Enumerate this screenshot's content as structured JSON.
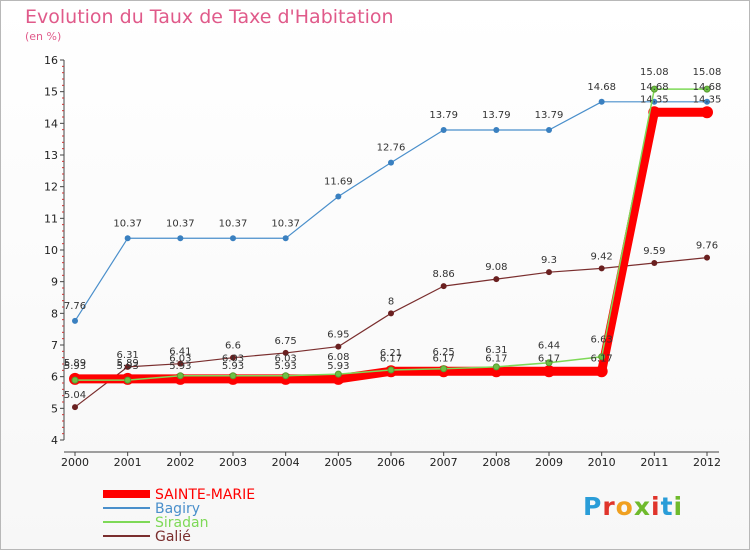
{
  "title": "Evolution du Taux de Taxe d'Habitation",
  "subtitle": "(en %)",
  "logo": {
    "text": "Proxiti",
    "letters": [
      "P",
      "r",
      "o",
      "x",
      "i",
      "t",
      "i"
    ],
    "colors": [
      "#2a9dd8",
      "#e0342b",
      "#f0a020",
      "#6fba2c",
      "#e0342b",
      "#2a9dd8",
      "#6fba2c"
    ]
  },
  "chart_data": {
    "type": "line",
    "categories": [
      "2000",
      "2001",
      "2002",
      "2003",
      "2004",
      "2005",
      "2006",
      "2007",
      "2008",
      "2009",
      "2010",
      "2011",
      "2012"
    ],
    "ylim": [
      4,
      16
    ],
    "yticks": [
      4,
      5,
      6,
      7,
      8,
      9,
      10,
      11,
      12,
      13,
      14,
      15,
      16
    ],
    "grid": false,
    "legend_position": "bottom-left",
    "series": [
      {
        "name": "SAINTE-MARIE",
        "color": "#ff0000",
        "width": 9,
        "marker_color": "#ff0000",
        "values": [
          5.93,
          5.93,
          5.93,
          5.93,
          5.93,
          5.93,
          6.17,
          6.17,
          6.17,
          6.17,
          6.17,
          14.35,
          14.35
        ],
        "labels": [
          "5.93",
          "5.93",
          "5.93",
          "5.93",
          "5.93",
          "5.93",
          "6.17",
          "6.17",
          "6.17",
          "6.17",
          "6.17",
          "14.35",
          "14.35"
        ]
      },
      {
        "name": "Bagiry",
        "color": "#4a8fcb",
        "width": 1.2,
        "marker_color": "#3a80c0",
        "values": [
          7.76,
          10.37,
          10.37,
          10.37,
          10.37,
          11.69,
          12.76,
          13.79,
          13.79,
          13.79,
          14.68,
          14.68,
          14.68
        ],
        "labels": [
          "7.76",
          "10.37",
          "10.37",
          "10.37",
          "10.37",
          "11.69",
          "12.76",
          "13.79",
          "13.79",
          "13.79",
          "14.68",
          "14.68",
          "14.68"
        ]
      },
      {
        "name": "Siradan",
        "color": "#7ed957",
        "width": 1.5,
        "marker_color": "#6cc045",
        "values": [
          5.89,
          5.89,
          6.03,
          6.03,
          6.03,
          6.08,
          6.21,
          6.25,
          6.31,
          6.44,
          6.63,
          15.08,
          15.08
        ],
        "labels": [
          "5.89",
          "5.89",
          "6.03",
          "6.03",
          "6.03",
          "6.08",
          "6.21",
          "6.25",
          "6.31",
          "6.44",
          "6.63",
          "15.08",
          "15.08"
        ]
      },
      {
        "name": "Galié",
        "color": "#7a2e2e",
        "width": 1.2,
        "marker_color": "#6a2020",
        "values": [
          5.04,
          6.31,
          6.41,
          6.6,
          6.75,
          6.95,
          8,
          8.86,
          9.08,
          9.3,
          9.42,
          9.59,
          9.76
        ],
        "labels": [
          "5.04",
          "6.31",
          "6.41",
          "6.6",
          "6.75",
          "6.95",
          "8",
          "8.86",
          "9.08",
          "9.3",
          "9.42",
          "9.59",
          "9.76"
        ]
      }
    ]
  }
}
